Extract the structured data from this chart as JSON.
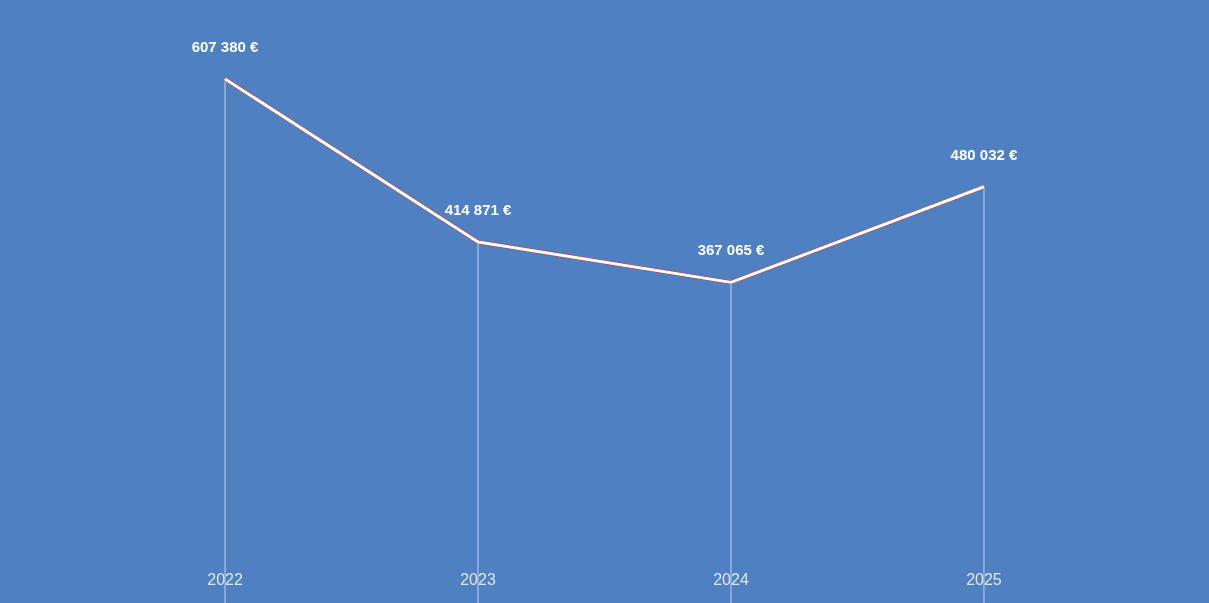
{
  "chart_data": {
    "type": "line",
    "categories": [
      "2022",
      "2023",
      "2024",
      "2025"
    ],
    "series": [
      {
        "color": "#ffffff",
        "values": [
          607380,
          414871,
          367065,
          480032
        ],
        "value_labels": [
          "607 380 €",
          "414 871 €",
          "367 065 €",
          "480 032 €"
        ]
      }
    ],
    "tick_labels": "x",
    "grid": "x",
    "marker": "none",
    "line_style": "solid"
  }
}
